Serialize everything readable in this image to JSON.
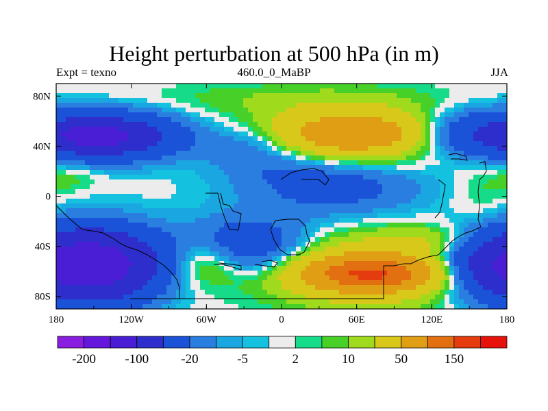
{
  "chart_data": {
    "type": "heatmap",
    "title": "Height perturbation at 500 hPa (in m)",
    "left_subtitle": "Expt = texno",
    "center_subtitle": "460.0_0_MaBP",
    "right_subtitle": "JJA",
    "x_ticks": [
      {
        "value": -180,
        "label": "180"
      },
      {
        "value": -120,
        "label": "120W"
      },
      {
        "value": -60,
        "label": "60W"
      },
      {
        "value": 0,
        "label": "0"
      },
      {
        "value": 60,
        "label": "60E"
      },
      {
        "value": 120,
        "label": "120E"
      },
      {
        "value": 180,
        "label": "180"
      }
    ],
    "y_ticks": [
      {
        "value": 80,
        "label": "80N"
      },
      {
        "value": 40,
        "label": "40N"
      },
      {
        "value": 0,
        "label": "0"
      },
      {
        "value": -40,
        "label": "40S"
      },
      {
        "value": -80,
        "label": "80S"
      }
    ],
    "xlim": [
      -180,
      180
    ],
    "ylim": [
      -90,
      90
    ],
    "colorbar": {
      "levels": [
        -200,
        -150,
        -100,
        -50,
        -20,
        -10,
        -5,
        -2,
        2,
        5,
        10,
        20,
        50,
        100,
        150,
        200
      ],
      "labels": [
        "-200",
        "-100",
        "-20",
        "-5",
        "2",
        "10",
        "50",
        "150"
      ],
      "label_level_indices": [
        0,
        2,
        4,
        6,
        8,
        10,
        12,
        14
      ],
      "colors": [
        "#8a1ee0",
        "#6418dc",
        "#4a1ed4",
        "#2e2ecc",
        "#1a52d8",
        "#2a7ee0",
        "#1aa6e0",
        "#14c2e0",
        "#ececec",
        "#16dc8a",
        "#46d028",
        "#a0da1c",
        "#d8c81a",
        "#e09e14",
        "#e27010",
        "#e43c0e",
        "#e8120c"
      ]
    },
    "field_blobs": [
      {
        "lon": -140,
        "lat": 48,
        "rlon": 55,
        "rlat": 18,
        "value": -90
      },
      {
        "lon": -150,
        "lat": 48,
        "rlon": 25,
        "rlat": 8,
        "value": -60
      },
      {
        "lon": -20,
        "lat": 40,
        "rlon": 45,
        "rlat": 18,
        "value": -25
      },
      {
        "lon": 40,
        "lat": 8,
        "rlon": 70,
        "rlat": 22,
        "value": -30
      },
      {
        "lon": -150,
        "lat": -55,
        "rlon": 50,
        "rlat": 28,
        "value": -140
      },
      {
        "lon": -30,
        "lat": -40,
        "rlon": 50,
        "rlat": 22,
        "value": -45
      },
      {
        "lon": 160,
        "lat": -55,
        "rlon": 40,
        "rlat": 25,
        "value": -40
      },
      {
        "lon": 150,
        "lat": 50,
        "rlon": 45,
        "rlat": 18,
        "value": -40
      },
      {
        "lon": 55,
        "lat": 50,
        "rlon": 75,
        "rlat": 22,
        "value": 55
      },
      {
        "lon": 55,
        "lat": 50,
        "rlon": 45,
        "rlat": 12,
        "value": 45
      },
      {
        "lon": 70,
        "lat": -60,
        "rlon": 75,
        "rlat": 25,
        "value": 55
      },
      {
        "lon": 70,
        "lat": -62,
        "rlon": 45,
        "rlat": 12,
        "value": 110
      },
      {
        "lon": -60,
        "lat": -50,
        "rlon": 30,
        "rlat": 20,
        "value": 30
      },
      {
        "lon": 120,
        "lat": -35,
        "rlon": 40,
        "rlat": 12,
        "value": 15
      },
      {
        "lon": 0,
        "lat": 78,
        "rlon": 110,
        "rlat": 12,
        "value": 8
      },
      {
        "lon": 0,
        "lat": 20,
        "rlon": 40,
        "rlat": 10,
        "value": -5
      },
      {
        "lon": 160,
        "lat": 0,
        "rlon": 25,
        "rlat": 25,
        "value": 6
      },
      {
        "lon": -170,
        "lat": 15,
        "rlon": 25,
        "rlat": 12,
        "value": 8
      }
    ]
  }
}
